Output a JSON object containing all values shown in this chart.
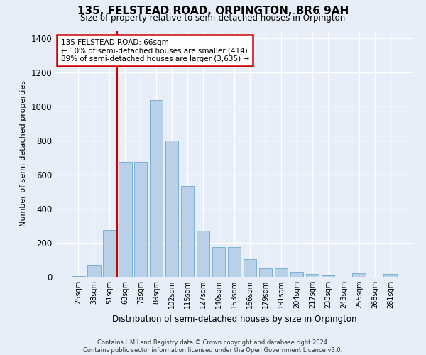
{
  "title_line1": "135, FELSTEAD ROAD, ORPINGTON, BR6 9AH",
  "title_line2": "Size of property relative to semi-detached houses in Orpington",
  "xlabel": "Distribution of semi-detached houses by size in Orpington",
  "ylabel": "Number of semi-detached properties",
  "categories": [
    "25sqm",
    "38sqm",
    "51sqm",
    "63sqm",
    "76sqm",
    "89sqm",
    "102sqm",
    "115sqm",
    "127sqm",
    "140sqm",
    "153sqm",
    "166sqm",
    "179sqm",
    "191sqm",
    "204sqm",
    "217sqm",
    "230sqm",
    "243sqm",
    "255sqm",
    "268sqm",
    "281sqm"
  ],
  "values": [
    5,
    70,
    275,
    675,
    675,
    1040,
    800,
    535,
    270,
    175,
    175,
    105,
    50,
    50,
    30,
    15,
    10,
    0,
    20,
    0,
    15
  ],
  "bar_color": "#b8d0e8",
  "bar_edgecolor": "#6aaad4",
  "property_label": "135 FELSTEAD ROAD: 66sqm",
  "annotation_line1": "← 10% of semi-detached houses are smaller (414)",
  "annotation_line2": "89% of semi-detached houses are larger (3,635) →",
  "annotation_box_facecolor": "#ffffff",
  "annotation_box_edgecolor": "#cc0000",
  "vline_color": "#cc0000",
  "vline_x": 2.5,
  "background_color": "#e8eef8",
  "grid_color": "#ffffff",
  "ylim": [
    0,
    1450
  ],
  "yticks": [
    0,
    200,
    400,
    600,
    800,
    1000,
    1200,
    1400
  ],
  "footer_line1": "Contains HM Land Registry data © Crown copyright and database right 2024.",
  "footer_line2": "Contains public sector information licensed under the Open Government Licence v3.0."
}
